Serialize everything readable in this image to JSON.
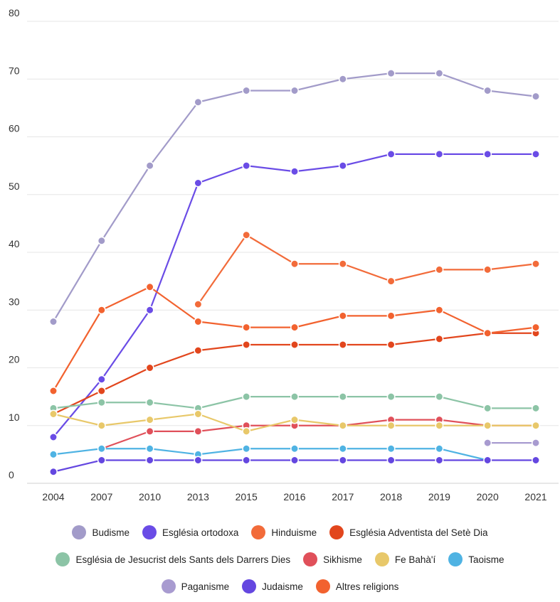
{
  "chart_data": {
    "type": "line",
    "categories": [
      "2004",
      "2007",
      "2010",
      "2013",
      "2015",
      "2016",
      "2017",
      "2018",
      "2019",
      "2020",
      "2021"
    ],
    "ylim": [
      0,
      80
    ],
    "yticks": [
      "0",
      "10",
      "20",
      "30",
      "40",
      "50",
      "60",
      "70",
      "80"
    ],
    "ytick_values": [
      0,
      10,
      20,
      30,
      40,
      50,
      60,
      70,
      80
    ],
    "grid": "horizontal",
    "legend_position": "bottom",
    "series": [
      {
        "name": "Budisme",
        "color": "#a29bc9",
        "values": [
          28,
          42,
          55,
          66,
          68,
          68,
          70,
          71,
          71,
          68,
          67
        ]
      },
      {
        "name": "Església ortodoxa",
        "color": "#6a4ce6",
        "values": [
          8,
          18,
          30,
          52,
          55,
          54,
          55,
          57,
          57,
          57,
          57
        ]
      },
      {
        "name": "Hinduisme",
        "color": "#f26b3a",
        "values": [
          null,
          null,
          null,
          31,
          43,
          38,
          38,
          35,
          37,
          37,
          38
        ]
      },
      {
        "name": "Església Adventista del Setè Dia",
        "color": "#e2461d",
        "values": [
          12,
          16,
          20,
          23,
          24,
          24,
          24,
          24,
          25,
          26,
          26
        ]
      },
      {
        "name": "Església de Jesucrist dels Sants dels Darrers Dies",
        "color": "#8cc4a6",
        "values": [
          13,
          14,
          14,
          13,
          15,
          15,
          15,
          15,
          15,
          13,
          13
        ]
      },
      {
        "name": "Sikhisme",
        "color": "#e0505a",
        "values": [
          null,
          6,
          9,
          9,
          10,
          10,
          10,
          11,
          11,
          10,
          10
        ]
      },
      {
        "name": "Fe Bahà'í",
        "color": "#e8c86a",
        "values": [
          12,
          10,
          11,
          12,
          9,
          11,
          10,
          10,
          10,
          10,
          10
        ]
      },
      {
        "name": "Taoisme",
        "color": "#4fb3e3",
        "values": [
          5,
          6,
          6,
          5,
          6,
          6,
          6,
          6,
          6,
          4,
          null
        ]
      },
      {
        "name": "Paganisme",
        "color": "#a89bd0",
        "values": [
          null,
          null,
          null,
          null,
          null,
          null,
          null,
          null,
          null,
          7,
          7
        ]
      },
      {
        "name": "Judaisme",
        "color": "#6447e0",
        "values": [
          2,
          4,
          4,
          4,
          4,
          4,
          4,
          4,
          4,
          4,
          4
        ]
      },
      {
        "name": "Altres religions",
        "color": "#f2622f",
        "values": [
          16,
          30,
          34,
          28,
          27,
          27,
          29,
          29,
          30,
          26,
          27
        ]
      }
    ],
    "legend_rows": [
      [
        0,
        1,
        2,
        3
      ],
      [
        4,
        5,
        6,
        7
      ],
      [
        8,
        9,
        10
      ]
    ]
  }
}
